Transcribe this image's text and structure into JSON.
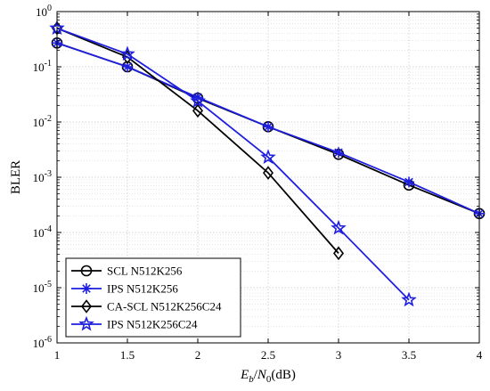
{
  "chart_data": {
    "type": "line",
    "title": "",
    "xlabel": "E_b/N_0(dB)",
    "xlabel_parts": {
      "E": "E",
      "b": "b",
      "slash": "/",
      "N": "N",
      "zero": "0",
      "unit": "(dB)"
    },
    "ylabel": "BLER",
    "xlim": [
      1,
      4
    ],
    "ylim": [
      1e-06,
      1
    ],
    "yscale": "log",
    "grid": true,
    "legend_position": "bottom-left",
    "x_ticks": [
      "1",
      "1.5",
      "2",
      "2.5",
      "3",
      "3.5",
      "4"
    ],
    "x_tick_values": [
      1,
      1.5,
      2,
      2.5,
      3,
      3.5,
      4
    ],
    "y_ticks": [
      {
        "base": "10",
        "exp": "0",
        "value": 1
      },
      {
        "base": "10",
        "exp": "-1",
        "value": 0.1
      },
      {
        "base": "10",
        "exp": "-2",
        "value": 0.01
      },
      {
        "base": "10",
        "exp": "-3",
        "value": 0.001
      },
      {
        "base": "10",
        "exp": "-4",
        "value": 0.0001
      },
      {
        "base": "10",
        "exp": "-5",
        "value": 1e-05
      },
      {
        "base": "10",
        "exp": "-6",
        "value": 1e-06
      }
    ],
    "series": [
      {
        "name": "SCL N512K256",
        "color": "#000000",
        "marker": "circle",
        "x": [
          1,
          1.5,
          2,
          2.5,
          3,
          3.5,
          4
        ],
        "y": [
          0.27,
          0.1,
          0.027,
          0.0082,
          0.0026,
          0.00072,
          0.00022
        ]
      },
      {
        "name": "IPS N512K256",
        "color": "#1f1fe0",
        "marker": "asterisk",
        "x": [
          1,
          1.5,
          2,
          2.5,
          3,
          3.5,
          4
        ],
        "y": [
          0.27,
          0.1,
          0.028,
          0.0082,
          0.0028,
          0.00082,
          0.00022
        ]
      },
      {
        "name": "CA-SCL N512K256C24",
        "color": "#000000",
        "marker": "diamond",
        "x": [
          1,
          1.5,
          2,
          2.5,
          3
        ],
        "y": [
          0.5,
          0.15,
          0.016,
          0.0012,
          4.2e-05
        ]
      },
      {
        "name": "IPS N512K256C24",
        "color": "#1f1fe0",
        "marker": "star",
        "x": [
          1,
          1.5,
          2,
          2.5,
          3,
          3.5
        ],
        "y": [
          0.5,
          0.17,
          0.024,
          0.0023,
          0.00012,
          6e-06
        ]
      }
    ]
  }
}
